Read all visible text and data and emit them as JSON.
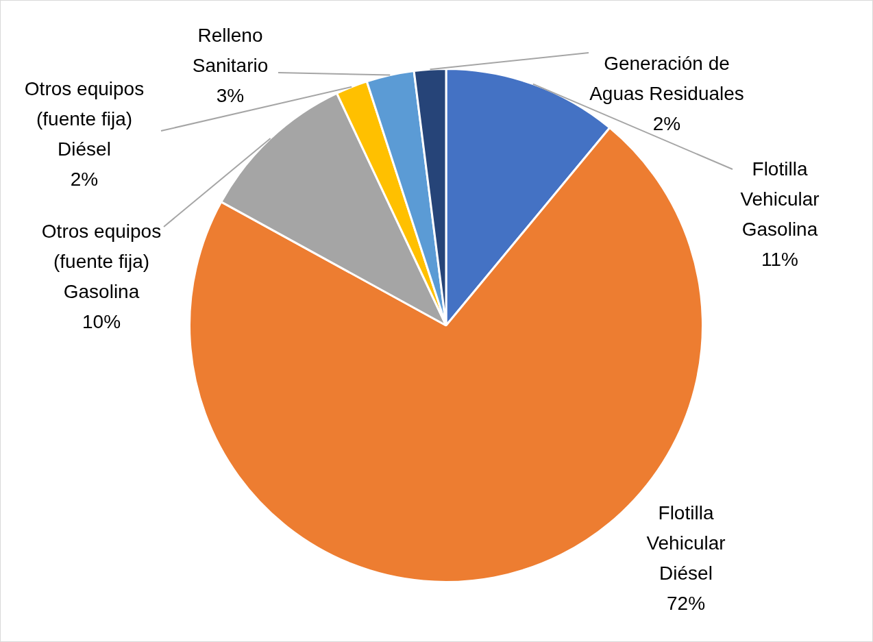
{
  "chart_data": {
    "type": "pie",
    "categories": [
      "Flotilla Vehicular Gasolina",
      "Flotilla Vehicular Diésel",
      "Otros equipos (fuente fija) Gasolina",
      "Otros equipos (fuente fija) Diésel",
      "Relleno Sanitario",
      "Generación de Aguas Residuales"
    ],
    "values": [
      11,
      72,
      10,
      2,
      3,
      2
    ],
    "value_labels": [
      "11%",
      "72%",
      "10%",
      "2%",
      "3%",
      "2%"
    ],
    "colors": [
      "#4472c4",
      "#ed7d31",
      "#a5a5a5",
      "#ffc000",
      "#5b9bd5",
      "#264478"
    ],
    "legend": false
  }
}
